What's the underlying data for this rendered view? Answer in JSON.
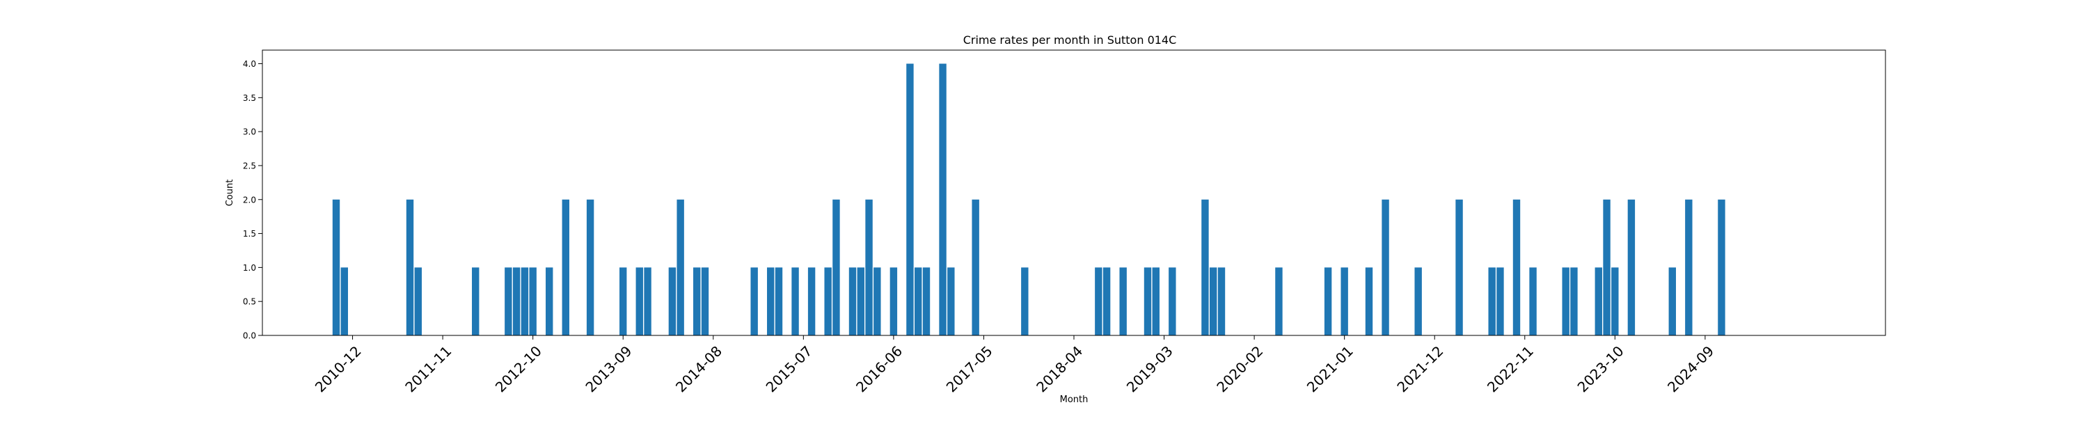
{
  "chart_data": {
    "type": "bar",
    "title": "Crime rates per month in Sutton 014C",
    "xlabel": "Month",
    "ylabel": "Count",
    "ylim": [
      0,
      4.2
    ],
    "grid": false,
    "legend": "none",
    "bar_color": "#1f77b4",
    "xlim": [
      "2010-01",
      "2026-07"
    ],
    "x_ticks": [
      "2010-12",
      "2011-11",
      "2012-10",
      "2013-09",
      "2014-08",
      "2015-07",
      "2016-06",
      "2017-05",
      "2018-04",
      "2019-03",
      "2020-02",
      "2021-01",
      "2021-12",
      "2022-11",
      "2023-10",
      "2024-09"
    ],
    "y_ticks": [
      "0.0",
      "0.5",
      "1.0",
      "1.5",
      "2.0",
      "2.5",
      "3.0",
      "3.5",
      "4.0"
    ],
    "categories": [
      "2010-10",
      "2010-11",
      "2011-07",
      "2011-08",
      "2012-03",
      "2012-07",
      "2012-08",
      "2012-09",
      "2012-10",
      "2012-12",
      "2013-02",
      "2013-05",
      "2013-09",
      "2013-11",
      "2013-12",
      "2014-03",
      "2014-04",
      "2014-06",
      "2014-07",
      "2015-01",
      "2015-03",
      "2015-04",
      "2015-06",
      "2015-08",
      "2015-10",
      "2015-11",
      "2016-01",
      "2016-02",
      "2016-03",
      "2016-04",
      "2016-06",
      "2016-08",
      "2016-09",
      "2016-10",
      "2016-12",
      "2017-01",
      "2017-04",
      "2017-10",
      "2018-07",
      "2018-08",
      "2018-10",
      "2019-01",
      "2019-02",
      "2019-04",
      "2019-08",
      "2019-09",
      "2019-10",
      "2020-05",
      "2020-11",
      "2021-01",
      "2021-04",
      "2021-06",
      "2021-10",
      "2022-03",
      "2022-07",
      "2022-08",
      "2022-10",
      "2022-12",
      "2023-04",
      "2023-05",
      "2023-08",
      "2023-09",
      "2023-10",
      "2023-12",
      "2024-05",
      "2024-07",
      "2024-11"
    ],
    "values": [
      2,
      1,
      2,
      1,
      1,
      1,
      1,
      1,
      1,
      1,
      2,
      2,
      1,
      1,
      1,
      1,
      2,
      1,
      1,
      1,
      1,
      1,
      1,
      1,
      1,
      2,
      1,
      1,
      2,
      1,
      1,
      4,
      1,
      1,
      4,
      1,
      2,
      1,
      1,
      1,
      1,
      1,
      1,
      1,
      2,
      1,
      1,
      1,
      1,
      1,
      1,
      2,
      1,
      2,
      1,
      1,
      2,
      1,
      1,
      1,
      1,
      2,
      1,
      2,
      1,
      2,
      2
    ]
  }
}
